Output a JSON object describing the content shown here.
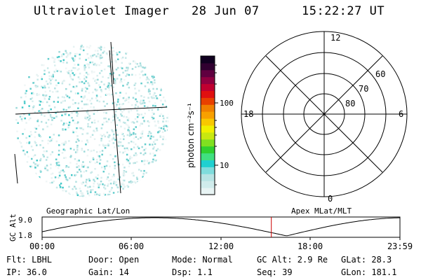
{
  "header": {
    "instrument": "Ultraviolet Imager",
    "date": "28 Jun 07",
    "time": "15:22:27 UT"
  },
  "colorbar": {
    "unit_label": "photon cm⁻²s⁻¹",
    "ticks": [
      {
        "label": "100",
        "value": 100
      },
      {
        "label": "10",
        "value": 10
      }
    ],
    "scale": "log"
  },
  "polar": {
    "mlt_labels": {
      "top": "12",
      "left": "18",
      "right": "6",
      "bottom": "0"
    },
    "lat_labels": [
      "60",
      "70",
      "80"
    ]
  },
  "timeline": {
    "axis_title": "GC Alt",
    "y_ticks": [
      "9.0",
      "1.8"
    ],
    "left_title": "Geographic Lat/Lon",
    "right_title": "Apex MLat/MLT",
    "x_ticks": [
      "00:00",
      "06:00",
      "12:00",
      "18:00",
      "23:59"
    ],
    "current_time": "15:22:27",
    "marker_color": "#cc0000"
  },
  "info": {
    "flt": "Flt: LBHL",
    "door": "Door: Open",
    "mode": "Mode: Normal",
    "gc_alt": "GC Alt: 2.9 Re",
    "glat": "GLat:  28.3",
    "ip": "IP: 36.0",
    "gain": "Gain: 14",
    "dsp": "Dsp:    1.1",
    "seq": "Seq: 39",
    "glon": "GLon: 181.1"
  }
}
